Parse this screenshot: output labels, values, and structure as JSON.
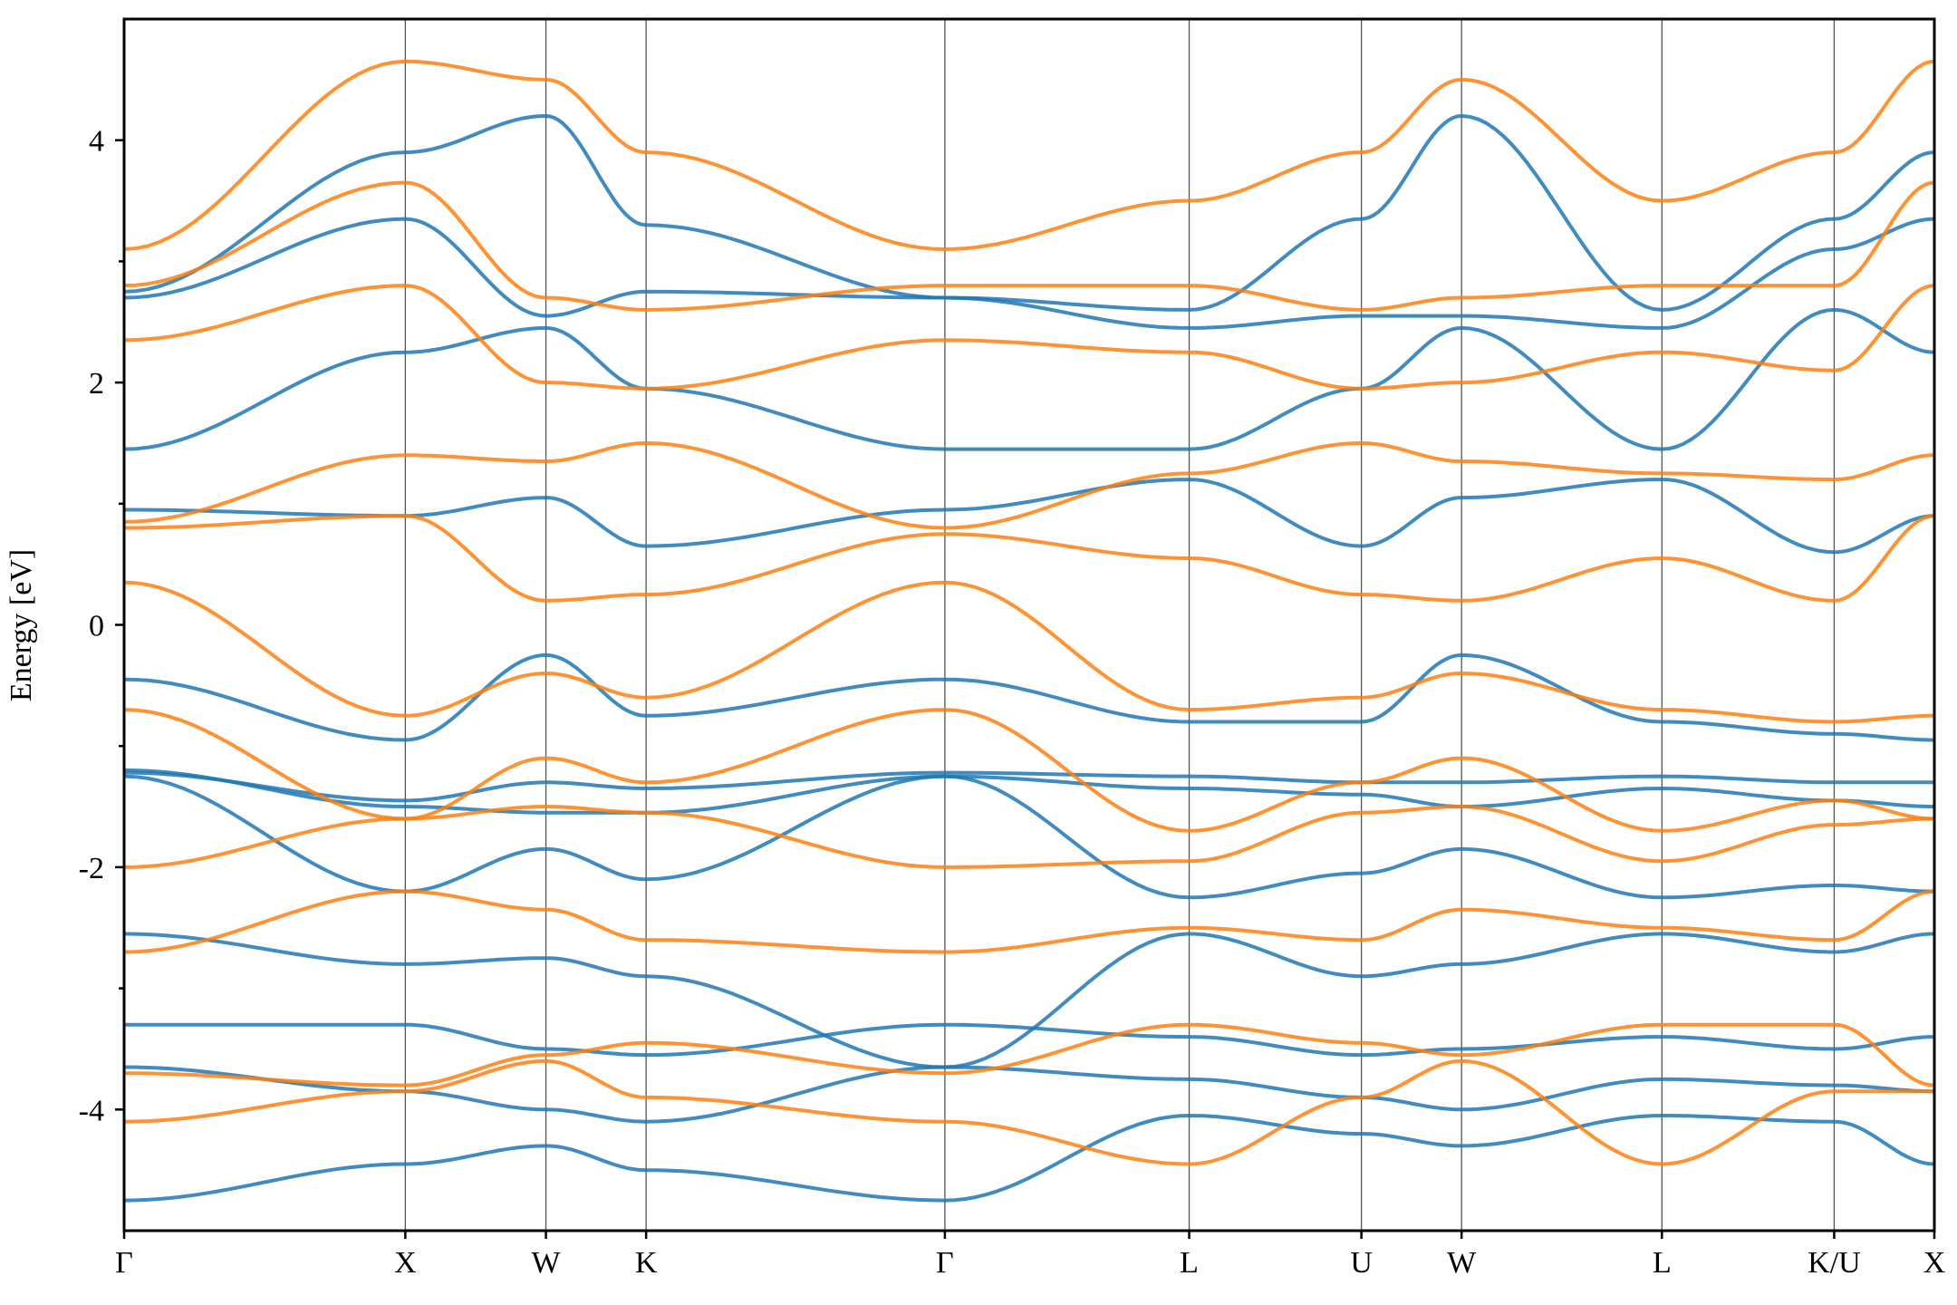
{
  "chart_data": {
    "type": "line",
    "ylabel": "Energy [eV]",
    "ylim": [
      -5,
      5
    ],
    "yticks": [
      -4,
      -2,
      0,
      2,
      4
    ],
    "yminor_ticks": [
      -3,
      -1,
      1,
      3
    ],
    "xlim": [
      0,
      10.3
    ],
    "kpoints": [
      {
        "label": "Γ",
        "x": 0.0
      },
      {
        "label": "X",
        "x": 1.6
      },
      {
        "label": "W",
        "x": 2.4
      },
      {
        "label": "K",
        "x": 2.97
      },
      {
        "label": "Γ",
        "x": 4.67
      },
      {
        "label": "L",
        "x": 6.06
      },
      {
        "label": "U",
        "x": 7.04
      },
      {
        "label": "W",
        "x": 7.61
      },
      {
        "label": "L",
        "x": 8.75
      },
      {
        "label": "K/U",
        "x": 9.73
      },
      {
        "label": "X",
        "x": 10.3
      }
    ],
    "grid": false,
    "colors": {
      "spin_up": "#1f77b4",
      "spin_down": "#ff7f0e"
    },
    "series": [
      {
        "spin": "up",
        "points": [
          [
            0,
            -4.75
          ],
          [
            1.6,
            -4.45
          ],
          [
            2.4,
            -4.3
          ],
          [
            2.97,
            -4.5
          ],
          [
            4.67,
            -4.75
          ],
          [
            6.06,
            -4.05
          ],
          [
            7.04,
            -4.2
          ],
          [
            7.61,
            -4.3
          ],
          [
            8.75,
            -4.05
          ],
          [
            9.73,
            -4.1
          ],
          [
            10.3,
            -4.45
          ]
        ]
      },
      {
        "spin": "up",
        "points": [
          [
            0,
            -3.65
          ],
          [
            1.6,
            -3.85
          ],
          [
            2.4,
            -4.0
          ],
          [
            2.97,
            -4.1
          ],
          [
            4.67,
            -3.65
          ],
          [
            6.06,
            -3.75
          ],
          [
            7.04,
            -3.9
          ],
          [
            7.61,
            -4.0
          ],
          [
            8.75,
            -3.75
          ],
          [
            9.73,
            -3.8
          ],
          [
            10.3,
            -3.85
          ]
        ]
      },
      {
        "spin": "up",
        "points": [
          [
            0,
            -3.3
          ],
          [
            1.6,
            -3.3
          ],
          [
            2.4,
            -3.5
          ],
          [
            2.97,
            -3.55
          ],
          [
            4.67,
            -3.3
          ],
          [
            6.06,
            -3.4
          ],
          [
            7.04,
            -3.55
          ],
          [
            7.61,
            -3.5
          ],
          [
            8.75,
            -3.4
          ],
          [
            9.73,
            -3.5
          ],
          [
            10.3,
            -3.4
          ]
        ]
      },
      {
        "spin": "up",
        "points": [
          [
            0,
            -2.55
          ],
          [
            1.6,
            -2.8
          ],
          [
            2.4,
            -2.75
          ],
          [
            2.97,
            -2.9
          ],
          [
            4.67,
            -3.65
          ],
          [
            6.06,
            -2.55
          ],
          [
            7.04,
            -2.9
          ],
          [
            7.61,
            -2.8
          ],
          [
            8.75,
            -2.55
          ],
          [
            9.73,
            -2.7
          ],
          [
            10.3,
            -2.55
          ]
        ]
      },
      {
        "spin": "up",
        "points": [
          [
            0,
            -1.25
          ],
          [
            1.6,
            -2.2
          ],
          [
            2.4,
            -1.85
          ],
          [
            2.97,
            -2.1
          ],
          [
            4.67,
            -1.25
          ],
          [
            6.06,
            -2.25
          ],
          [
            7.04,
            -2.05
          ],
          [
            7.61,
            -1.85
          ],
          [
            8.75,
            -2.25
          ],
          [
            9.73,
            -2.15
          ],
          [
            10.3,
            -2.2
          ]
        ]
      },
      {
        "spin": "up",
        "points": [
          [
            0,
            -1.2
          ],
          [
            1.6,
            -1.5
          ],
          [
            2.4,
            -1.55
          ],
          [
            2.97,
            -1.55
          ],
          [
            4.67,
            -1.25
          ],
          [
            6.06,
            -1.35
          ],
          [
            7.04,
            -1.4
          ],
          [
            7.61,
            -1.5
          ],
          [
            8.75,
            -1.35
          ],
          [
            9.73,
            -1.45
          ],
          [
            10.3,
            -1.5
          ]
        ]
      },
      {
        "spin": "up",
        "points": [
          [
            0,
            -1.22
          ],
          [
            1.6,
            -1.45
          ],
          [
            2.4,
            -1.3
          ],
          [
            2.97,
            -1.35
          ],
          [
            4.67,
            -1.22
          ],
          [
            6.06,
            -1.25
          ],
          [
            7.04,
            -1.3
          ],
          [
            7.61,
            -1.3
          ],
          [
            8.75,
            -1.25
          ],
          [
            9.73,
            -1.3
          ],
          [
            10.3,
            -1.3
          ]
        ]
      },
      {
        "spin": "up",
        "points": [
          [
            0,
            -0.45
          ],
          [
            1.6,
            -0.95
          ],
          [
            2.4,
            -0.25
          ],
          [
            2.97,
            -0.75
          ],
          [
            4.67,
            -0.45
          ],
          [
            6.06,
            -0.8
          ],
          [
            7.04,
            -0.8
          ],
          [
            7.61,
            -0.25
          ],
          [
            8.75,
            -0.8
          ],
          [
            9.73,
            -0.9
          ],
          [
            10.3,
            -0.95
          ]
        ]
      },
      {
        "spin": "up",
        "points": [
          [
            0,
            0.95
          ],
          [
            1.6,
            0.9
          ],
          [
            2.4,
            1.05
          ],
          [
            2.97,
            0.65
          ],
          [
            4.67,
            0.95
          ],
          [
            6.06,
            1.2
          ],
          [
            7.04,
            0.65
          ],
          [
            7.61,
            1.05
          ],
          [
            8.75,
            1.2
          ],
          [
            9.73,
            0.6
          ],
          [
            10.3,
            0.9
          ]
        ]
      },
      {
        "spin": "up",
        "points": [
          [
            0,
            1.45
          ],
          [
            1.6,
            2.25
          ],
          [
            2.4,
            2.45
          ],
          [
            2.97,
            1.95
          ],
          [
            4.67,
            1.45
          ],
          [
            6.06,
            1.45
          ],
          [
            7.04,
            1.95
          ],
          [
            7.61,
            2.45
          ],
          [
            8.75,
            1.45
          ],
          [
            9.73,
            2.6
          ],
          [
            10.3,
            2.25
          ]
        ]
      },
      {
        "spin": "up",
        "points": [
          [
            0,
            2.7
          ],
          [
            1.6,
            3.35
          ],
          [
            2.4,
            2.55
          ],
          [
            2.97,
            2.75
          ],
          [
            4.67,
            2.7
          ],
          [
            6.06,
            2.45
          ],
          [
            7.04,
            2.55
          ],
          [
            7.61,
            2.55
          ],
          [
            8.75,
            2.45
          ],
          [
            9.73,
            3.1
          ],
          [
            10.3,
            3.35
          ]
        ]
      },
      {
        "spin": "up",
        "points": [
          [
            0,
            2.75
          ],
          [
            1.6,
            3.9
          ],
          [
            2.4,
            4.2
          ],
          [
            2.97,
            3.3
          ],
          [
            4.67,
            2.7
          ],
          [
            6.06,
            2.6
          ],
          [
            7.04,
            3.35
          ],
          [
            7.61,
            4.2
          ],
          [
            8.75,
            2.6
          ],
          [
            9.73,
            3.35
          ],
          [
            10.3,
            3.9
          ]
        ]
      },
      {
        "spin": "down",
        "points": [
          [
            0,
            -4.1
          ],
          [
            1.6,
            -3.85
          ],
          [
            2.4,
            -3.6
          ],
          [
            2.97,
            -3.9
          ],
          [
            4.67,
            -4.1
          ],
          [
            6.06,
            -4.45
          ],
          [
            7.04,
            -3.9
          ],
          [
            7.61,
            -3.6
          ],
          [
            8.75,
            -4.45
          ],
          [
            9.73,
            -3.85
          ],
          [
            10.3,
            -3.85
          ]
        ]
      },
      {
        "spin": "down",
        "points": [
          [
            0,
            -3.7
          ],
          [
            1.6,
            -3.8
          ],
          [
            2.4,
            -3.55
          ],
          [
            2.97,
            -3.45
          ],
          [
            4.67,
            -3.7
          ],
          [
            6.06,
            -3.3
          ],
          [
            7.04,
            -3.45
          ],
          [
            7.61,
            -3.55
          ],
          [
            8.75,
            -3.3
          ],
          [
            9.73,
            -3.3
          ],
          [
            10.3,
            -3.8
          ]
        ]
      },
      {
        "spin": "down",
        "points": [
          [
            0,
            -2.7
          ],
          [
            1.6,
            -2.2
          ],
          [
            2.4,
            -2.35
          ],
          [
            2.97,
            -2.6
          ],
          [
            4.67,
            -2.7
          ],
          [
            6.06,
            -2.5
          ],
          [
            7.04,
            -2.6
          ],
          [
            7.61,
            -2.35
          ],
          [
            8.75,
            -2.5
          ],
          [
            9.73,
            -2.6
          ],
          [
            10.3,
            -2.2
          ]
        ]
      },
      {
        "spin": "down",
        "points": [
          [
            0,
            -2.0
          ],
          [
            1.6,
            -1.6
          ],
          [
            2.4,
            -1.5
          ],
          [
            2.97,
            -1.55
          ],
          [
            4.67,
            -2.0
          ],
          [
            6.06,
            -1.95
          ],
          [
            7.04,
            -1.55
          ],
          [
            7.61,
            -1.5
          ],
          [
            8.75,
            -1.95
          ],
          [
            9.73,
            -1.65
          ],
          [
            10.3,
            -1.6
          ]
        ]
      },
      {
        "spin": "down",
        "points": [
          [
            0,
            -0.7
          ],
          [
            1.6,
            -1.6
          ],
          [
            2.4,
            -1.1
          ],
          [
            2.97,
            -1.3
          ],
          [
            4.67,
            -0.7
          ],
          [
            6.06,
            -1.7
          ],
          [
            7.04,
            -1.3
          ],
          [
            7.61,
            -1.1
          ],
          [
            8.75,
            -1.7
          ],
          [
            9.73,
            -1.45
          ],
          [
            10.3,
            -1.6
          ]
        ]
      },
      {
        "spin": "down",
        "points": [
          [
            0,
            0.35
          ],
          [
            1.6,
            -0.75
          ],
          [
            2.4,
            -0.4
          ],
          [
            2.97,
            -0.6
          ],
          [
            4.67,
            0.35
          ],
          [
            6.06,
            -0.7
          ],
          [
            7.04,
            -0.6
          ],
          [
            7.61,
            -0.4
          ],
          [
            8.75,
            -0.7
          ],
          [
            9.73,
            -0.8
          ],
          [
            10.3,
            -0.75
          ]
        ]
      },
      {
        "spin": "down",
        "points": [
          [
            0,
            0.8
          ],
          [
            1.6,
            0.9
          ],
          [
            2.4,
            0.2
          ],
          [
            2.97,
            0.25
          ],
          [
            4.67,
            0.75
          ],
          [
            6.06,
            0.55
          ],
          [
            7.04,
            0.25
          ],
          [
            7.61,
            0.2
          ],
          [
            8.75,
            0.55
          ],
          [
            9.73,
            0.2
          ],
          [
            10.3,
            0.9
          ]
        ]
      },
      {
        "spin": "down",
        "points": [
          [
            0,
            0.85
          ],
          [
            1.6,
            1.4
          ],
          [
            2.4,
            1.35
          ],
          [
            2.97,
            1.5
          ],
          [
            4.67,
            0.8
          ],
          [
            6.06,
            1.25
          ],
          [
            7.04,
            1.5
          ],
          [
            7.61,
            1.35
          ],
          [
            8.75,
            1.25
          ],
          [
            9.73,
            1.2
          ],
          [
            10.3,
            1.4
          ]
        ]
      },
      {
        "spin": "down",
        "points": [
          [
            0,
            2.35
          ],
          [
            1.6,
            2.8
          ],
          [
            2.4,
            2.0
          ],
          [
            2.97,
            1.95
          ],
          [
            4.67,
            2.35
          ],
          [
            6.06,
            2.25
          ],
          [
            7.04,
            1.95
          ],
          [
            7.61,
            2.0
          ],
          [
            8.75,
            2.25
          ],
          [
            9.73,
            2.1
          ],
          [
            10.3,
            2.8
          ]
        ]
      },
      {
        "spin": "down",
        "points": [
          [
            0,
            2.8
          ],
          [
            1.6,
            3.65
          ],
          [
            2.4,
            2.7
          ],
          [
            2.97,
            2.6
          ],
          [
            4.67,
            2.8
          ],
          [
            6.06,
            2.8
          ],
          [
            7.04,
            2.6
          ],
          [
            7.61,
            2.7
          ],
          [
            8.75,
            2.8
          ],
          [
            9.73,
            2.8
          ],
          [
            10.3,
            3.65
          ]
        ]
      },
      {
        "spin": "down",
        "points": [
          [
            0,
            3.1
          ],
          [
            1.6,
            4.65
          ],
          [
            2.4,
            4.5
          ],
          [
            2.97,
            3.9
          ],
          [
            4.67,
            3.1
          ],
          [
            6.06,
            3.5
          ],
          [
            7.04,
            3.9
          ],
          [
            7.61,
            4.5
          ],
          [
            8.75,
            3.5
          ],
          [
            9.73,
            3.9
          ],
          [
            10.3,
            4.65
          ]
        ]
      }
    ]
  }
}
